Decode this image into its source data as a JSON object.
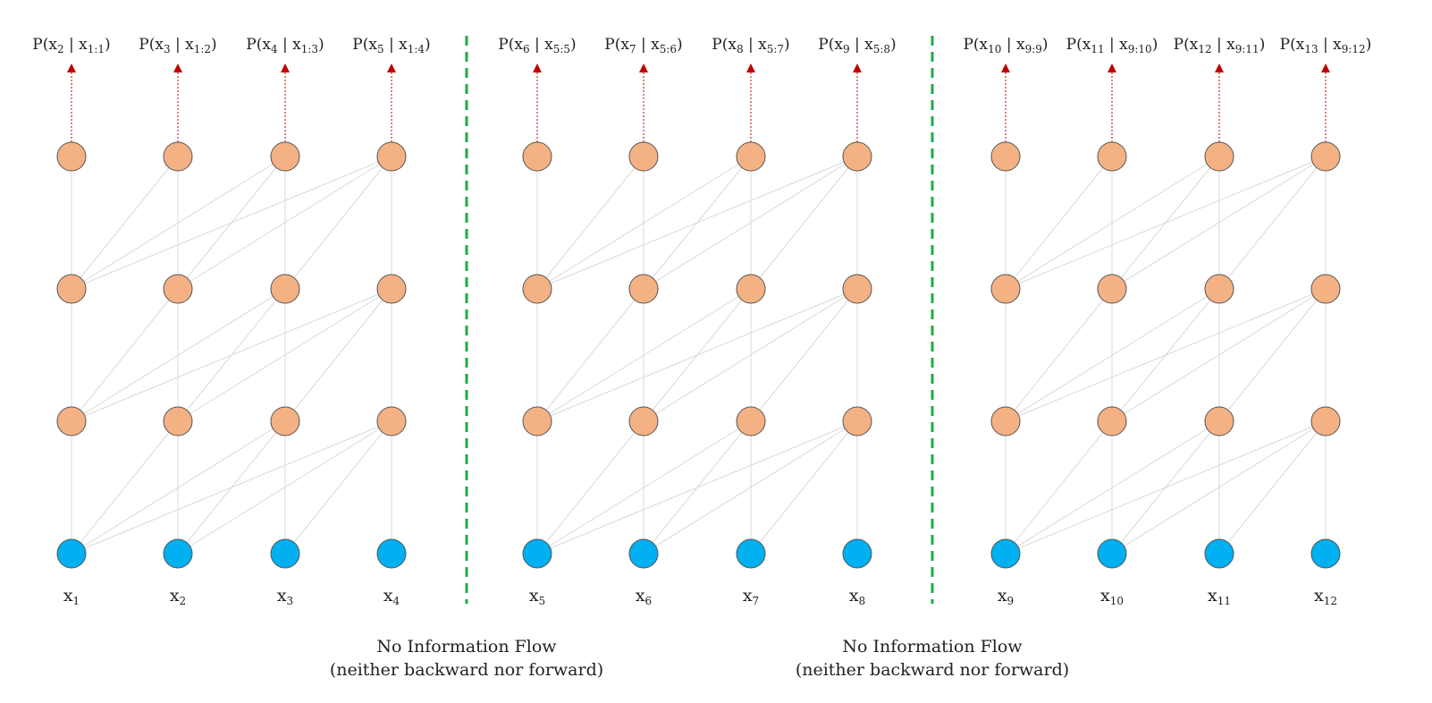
{
  "colors": {
    "hidden_node": "#f4b183",
    "input_node": "#00b0f0",
    "node_stroke": "#555555",
    "edge": "#d9d9d9",
    "output_arrow": "#c00000",
    "separator": "#1faa4a"
  },
  "segments": [
    {
      "inputs": [
        {
          "base": "x",
          "sub": "1"
        },
        {
          "base": "x",
          "sub": "2"
        },
        {
          "base": "x",
          "sub": "3"
        },
        {
          "base": "x",
          "sub": "4"
        }
      ],
      "outputs": [
        {
          "pre": "P(x",
          "sub1": "2",
          "mid": " | x",
          "sub2": "1:1",
          "post": ")"
        },
        {
          "pre": "P(x",
          "sub1": "3",
          "mid": " | x",
          "sub2": "1:2",
          "post": ")"
        },
        {
          "pre": "P(x",
          "sub1": "4",
          "mid": " | x",
          "sub2": "1:3",
          "post": ")"
        },
        {
          "pre": "P(x",
          "sub1": "5",
          "mid": " | x",
          "sub2": "1:4",
          "post": ")"
        }
      ]
    },
    {
      "inputs": [
        {
          "base": "x",
          "sub": "5"
        },
        {
          "base": "x",
          "sub": "6"
        },
        {
          "base": "x",
          "sub": "7"
        },
        {
          "base": "x",
          "sub": "8"
        }
      ],
      "outputs": [
        {
          "pre": "P(x",
          "sub1": "6",
          "mid": " | x",
          "sub2": "5:5",
          "post": ")"
        },
        {
          "pre": "P(x",
          "sub1": "7",
          "mid": " | x",
          "sub2": "5:6",
          "post": ")"
        },
        {
          "pre": "P(x",
          "sub1": "8",
          "mid": " | x",
          "sub2": "5:7",
          "post": ")"
        },
        {
          "pre": "P(x",
          "sub1": "9",
          "mid": " | x",
          "sub2": "5:8",
          "post": ")"
        }
      ]
    },
    {
      "inputs": [
        {
          "base": "x",
          "sub": "9"
        },
        {
          "base": "x",
          "sub": "10"
        },
        {
          "base": "x",
          "sub": "11"
        },
        {
          "base": "x",
          "sub": "12"
        }
      ],
      "outputs": [
        {
          "pre": "P(x",
          "sub1": "10",
          "mid": " | x",
          "sub2": "9:9",
          "post": ")"
        },
        {
          "pre": "P(x",
          "sub1": "11",
          "mid": " | x",
          "sub2": "9:10",
          "post": ")"
        },
        {
          "pre": "P(x",
          "sub1": "12",
          "mid": " | x",
          "sub2": "9:11",
          "post": ")"
        },
        {
          "pre": "P(x",
          "sub1": "13",
          "mid": " | x",
          "sub2": "9:12",
          "post": ")"
        }
      ]
    }
  ],
  "notes": [
    {
      "line1": "No Information Flow",
      "line2": "(neither backward nor forward)"
    },
    {
      "line1": "No Information Flow",
      "line2": "(neither backward nor forward)"
    }
  ]
}
